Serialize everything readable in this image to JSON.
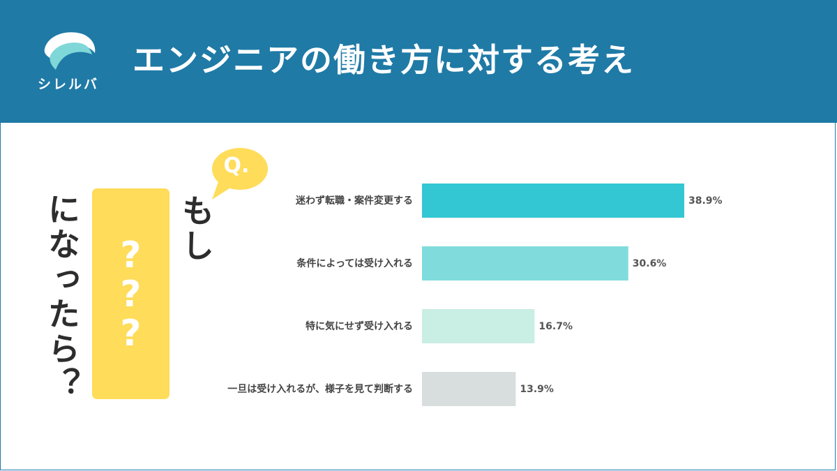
{
  "header": {
    "logo_text": "シレルバ",
    "title": "エンジニアの働き方に対する考え"
  },
  "illustration": {
    "question_badge": "Q.",
    "phrase_part1": "もし",
    "phrase_hidden": [
      "?",
      "?",
      "?"
    ],
    "phrase_part2": "になったら？"
  },
  "colors": {
    "header": "#1f7aa6",
    "bubble": "#ffdc59",
    "bars": [
      "#33c6d3",
      "#80dcdc",
      "#c9eee4",
      "#d7dedd"
    ]
  },
  "chart_data": {
    "type": "bar",
    "orientation": "horizontal",
    "categories": [
      "迷わず転職・案件変更する",
      "条件によっては受け入れる",
      "特に気にせず受け入れる",
      "一旦は受け入れるが、様子を見て判断する"
    ],
    "values": [
      38.9,
      30.6,
      16.7,
      13.9
    ],
    "value_labels": [
      "38.9%",
      "30.6%",
      "16.7%",
      "13.9%"
    ],
    "unit": "%",
    "xlim": [
      0,
      38.9
    ]
  }
}
